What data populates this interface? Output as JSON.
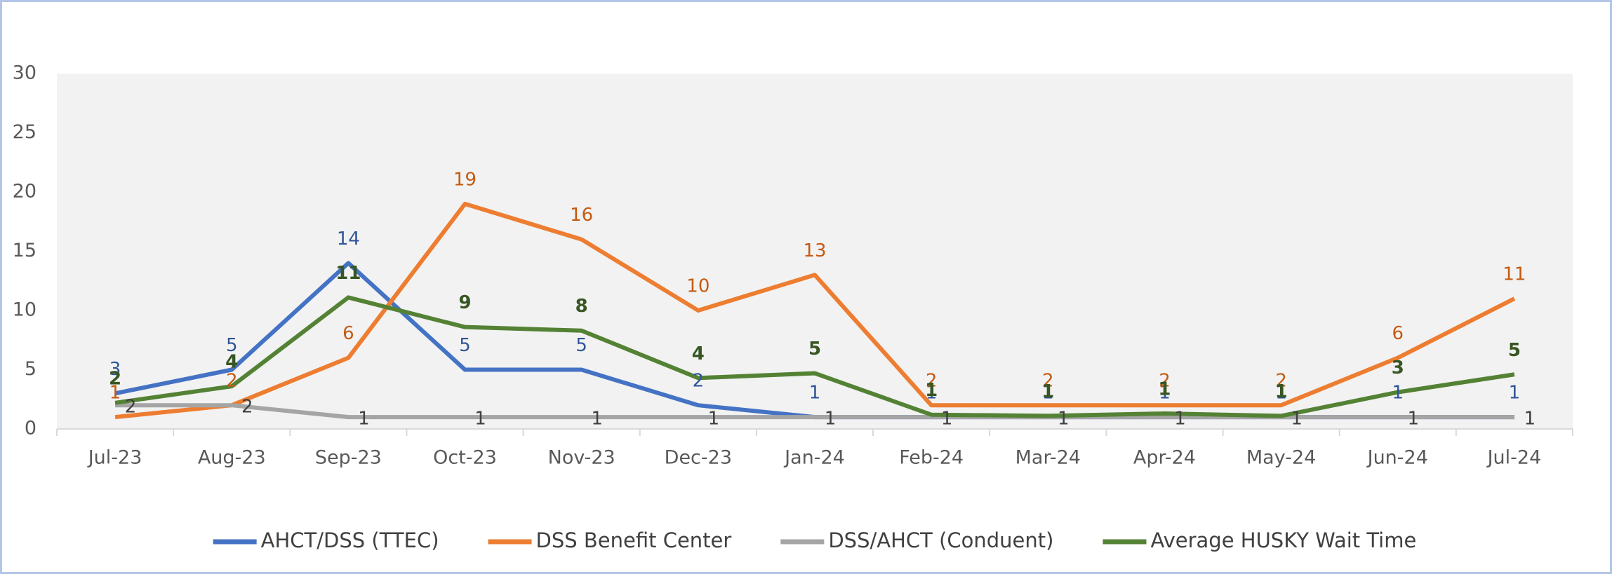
{
  "chart_data": {
    "type": "line",
    "categories": [
      "Jul-23",
      "Aug-23",
      "Sep-23",
      "Oct-23",
      "Nov-23",
      "Dec-23",
      "Jan-24",
      "Feb-24",
      "Mar-24",
      "Apr-24",
      "May-24",
      "Jun-24",
      "Jul-24"
    ],
    "series": [
      {
        "name": "AHCT/DSS (TTEC)",
        "color": "#4472c4",
        "label_color": "#2f5597",
        "values": [
          3,
          5,
          14,
          5,
          5,
          2,
          1,
          1,
          1,
          1,
          1,
          1,
          1
        ]
      },
      {
        "name": "DSS Benefit Center",
        "color": "#ed7d31",
        "label_color": "#c55a11",
        "values": [
          1,
          2,
          6,
          19,
          16,
          10,
          13,
          2,
          2,
          2,
          2,
          6,
          11
        ]
      },
      {
        "name": "DSS/AHCT (Conduent)",
        "color": "#a5a5a5",
        "label_color": "#404040",
        "values": [
          2,
          2,
          1,
          1,
          1,
          1,
          1,
          1,
          1,
          1,
          1,
          1,
          1
        ]
      },
      {
        "name": "Average HUSKY Wait Time",
        "color": "#548235",
        "label_color": "#375623",
        "values": [
          2.2,
          3.6,
          11.1,
          8.6,
          8.3,
          4.3,
          4.7,
          1.2,
          1.1,
          1.3,
          1.1,
          3.1,
          4.6
        ],
        "value_labels": [
          "2",
          "4",
          "11",
          "9",
          "8",
          "4",
          "5",
          "1",
          "1",
          "1",
          "1",
          "3",
          "5"
        ]
      }
    ],
    "ylim": [
      0,
      30
    ],
    "yticks": [
      0,
      5,
      10,
      15,
      20,
      25,
      30
    ],
    "grid": false,
    "legend": "bottom"
  }
}
